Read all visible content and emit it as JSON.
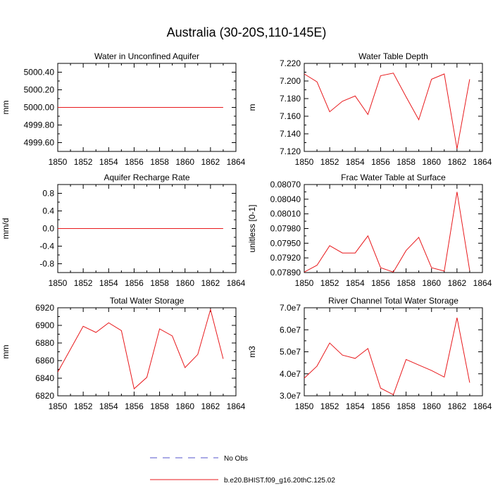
{
  "page": {
    "title": "Australia (30-20S,110-145E)"
  },
  "legend": {
    "items": [
      {
        "label": "No Obs",
        "style": "dashed",
        "color": "#5555cc"
      },
      {
        "label": "b.e20.BHIST.f09_g16.20thC.125.02",
        "style": "solid",
        "color": "#e8191c"
      }
    ]
  },
  "chart_data": [
    {
      "type": "line",
      "title": "Water in Unconfined Aquifer",
      "ylabel": "mm",
      "xlim": [
        1850,
        1864
      ],
      "ylim": [
        4999.5,
        5000.5
      ],
      "xticks": [
        1850,
        1852,
        1854,
        1856,
        1858,
        1860,
        1862,
        1864
      ],
      "yticks": [
        4999.6,
        4999.8,
        5000.0,
        5000.2,
        5000.4
      ],
      "ytick_labels": [
        "4999.60",
        "4999.80",
        "5000.00",
        "5000.20",
        "5000.40"
      ],
      "x": [
        1850,
        1851,
        1852,
        1853,
        1854,
        1855,
        1856,
        1857,
        1858,
        1859,
        1860,
        1861,
        1862,
        1863
      ],
      "series": [
        {
          "values": [
            5000.0,
            5000.0,
            5000.0,
            5000.0,
            5000.0,
            5000.0,
            5000.0,
            5000.0,
            5000.0,
            5000.0,
            5000.0,
            5000.0,
            5000.0,
            5000.0
          ],
          "color": "#e8191c"
        }
      ]
    },
    {
      "type": "line",
      "title": "Water Table Depth",
      "ylabel": "m",
      "xlim": [
        1850,
        1864
      ],
      "ylim": [
        7.12,
        7.22
      ],
      "xticks": [
        1850,
        1852,
        1854,
        1856,
        1858,
        1860,
        1862,
        1864
      ],
      "yticks": [
        7.12,
        7.14,
        7.16,
        7.18,
        7.2,
        7.22
      ],
      "ytick_labels": [
        "7.120",
        "7.140",
        "7.160",
        "7.180",
        "7.200",
        "7.220"
      ],
      "x": [
        1850,
        1851,
        1852,
        1853,
        1854,
        1855,
        1856,
        1857,
        1858,
        1859,
        1860,
        1861,
        1862,
        1863
      ],
      "series": [
        {
          "values": [
            7.208,
            7.199,
            7.165,
            7.177,
            7.183,
            7.162,
            7.206,
            7.209,
            7.182,
            7.156,
            7.202,
            7.208,
            7.123,
            7.202
          ],
          "color": "#e8191c"
        }
      ]
    },
    {
      "type": "line",
      "title": "Aquifer Recharge Rate",
      "ylabel": "mm/d",
      "xlim": [
        1850,
        1864
      ],
      "ylim": [
        -1.0,
        1.0
      ],
      "xticks": [
        1850,
        1852,
        1854,
        1856,
        1858,
        1860,
        1862,
        1864
      ],
      "yticks": [
        -0.8,
        -0.4,
        0.0,
        0.4,
        0.8
      ],
      "ytick_labels": [
        "-0.8",
        "-0.4",
        "0.0",
        "0.4",
        "0.8"
      ],
      "x": [
        1850,
        1851,
        1852,
        1853,
        1854,
        1855,
        1856,
        1857,
        1858,
        1859,
        1860,
        1861,
        1862,
        1863
      ],
      "series": [
        {
          "values": [
            0,
            0,
            0,
            0,
            0,
            0,
            0,
            0,
            0,
            0,
            0,
            0,
            0,
            0
          ],
          "color": "#e8191c"
        }
      ]
    },
    {
      "type": "line",
      "title": "Frac Water Table at Surface",
      "ylabel": "unitless [0-1]",
      "xlim": [
        1850,
        1864
      ],
      "ylim": [
        0.0789,
        0.0807
      ],
      "xticks": [
        1850,
        1852,
        1854,
        1856,
        1858,
        1860,
        1862,
        1864
      ],
      "yticks": [
        0.0789,
        0.0792,
        0.0795,
        0.0798,
        0.0801,
        0.0804,
        0.0807
      ],
      "ytick_labels": [
        "0.07890",
        "0.07920",
        "0.07950",
        "0.07980",
        "0.08010",
        "0.08040",
        "0.08070"
      ],
      "x": [
        1850,
        1851,
        1852,
        1853,
        1854,
        1855,
        1856,
        1857,
        1858,
        1859,
        1860,
        1861,
        1862,
        1863
      ],
      "series": [
        {
          "values": [
            0.07891,
            0.07905,
            0.07945,
            0.0793,
            0.0793,
            0.07965,
            0.079,
            0.07891,
            0.07935,
            0.07962,
            0.079,
            0.07893,
            0.08055,
            0.07894
          ],
          "color": "#e8191c"
        }
      ]
    },
    {
      "type": "line",
      "title": "Total Water Storage",
      "ylabel": "mm",
      "xlim": [
        1850,
        1864
      ],
      "ylim": [
        6820,
        6920
      ],
      "xticks": [
        1850,
        1852,
        1854,
        1856,
        1858,
        1860,
        1862,
        1864
      ],
      "yticks": [
        6820,
        6840,
        6860,
        6880,
        6900,
        6920
      ],
      "ytick_labels": [
        "6820",
        "6840",
        "6860",
        "6880",
        "6900",
        "6920"
      ],
      "x": [
        1850,
        1851,
        1852,
        1853,
        1854,
        1855,
        1856,
        1857,
        1858,
        1859,
        1860,
        1861,
        1862,
        1863
      ],
      "series": [
        {
          "values": [
            6847,
            6873,
            6899,
            6892,
            6903,
            6894,
            6828,
            6841,
            6896,
            6888,
            6852,
            6867,
            6918,
            6862
          ],
          "color": "#e8191c"
        }
      ]
    },
    {
      "type": "line",
      "title": "River Channel Total Water Storage",
      "ylabel": "m3",
      "xlim": [
        1850,
        1864
      ],
      "ylim": [
        30000000,
        70000000
      ],
      "xticks": [
        1850,
        1852,
        1854,
        1856,
        1858,
        1860,
        1862,
        1864
      ],
      "yticks": [
        30000000,
        40000000,
        50000000,
        60000000,
        70000000
      ],
      "ytick_labels": [
        "3.0e7",
        "4.0e7",
        "5.0e7",
        "6.0e7",
        "7.0e7"
      ],
      "x": [
        1850,
        1851,
        1852,
        1853,
        1854,
        1855,
        1856,
        1857,
        1858,
        1859,
        1860,
        1861,
        1862,
        1863
      ],
      "series": [
        {
          "values": [
            38000000,
            43500000,
            54000000,
            48500000,
            47000000,
            51500000,
            33500000,
            30500000,
            46500000,
            44000000,
            41500000,
            38500000,
            65500000,
            36000000
          ],
          "color": "#e8191c"
        }
      ]
    }
  ]
}
